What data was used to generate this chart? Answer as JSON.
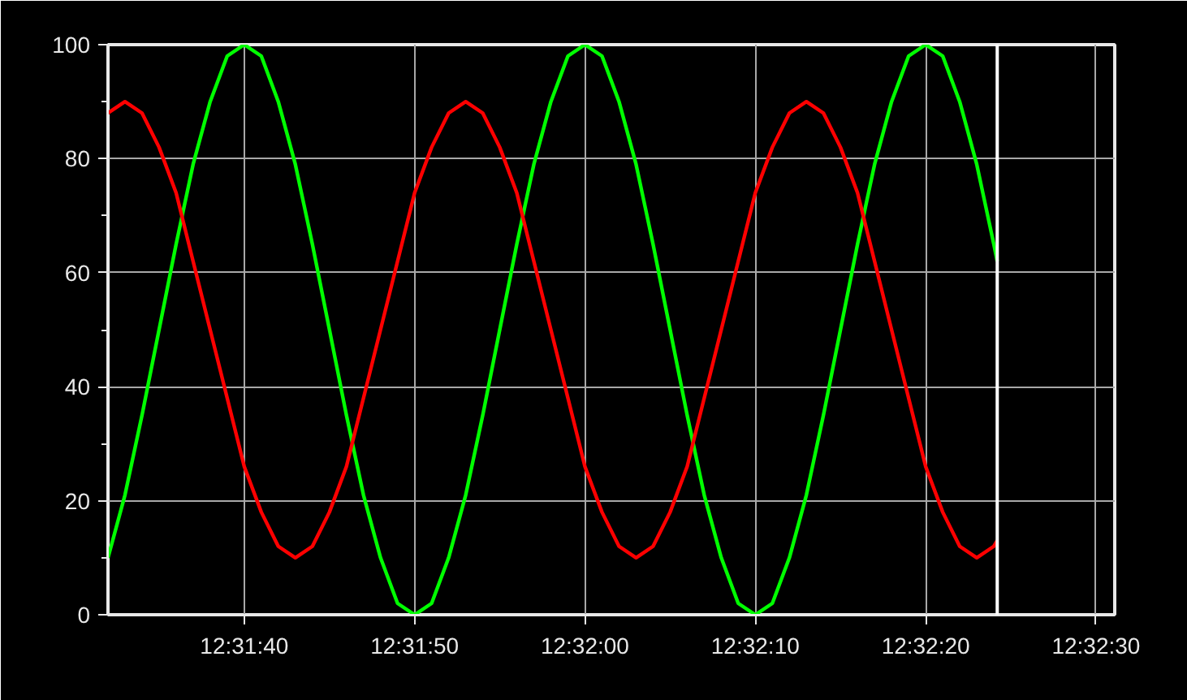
{
  "chart_data": {
    "type": "line",
    "x": [
      12.525556,
      12.525833,
      12.526111,
      12.526389,
      12.526667,
      12.526944,
      12.527222,
      12.5275,
      12.527778,
      12.528056,
      12.528333,
      12.528611,
      12.528889,
      12.529167,
      12.529444,
      12.529722,
      12.53,
      12.530278,
      12.530556,
      12.530833,
      12.531111,
      12.531389,
      12.531667,
      12.531944,
      12.532222,
      12.5325,
      12.532778,
      12.533056,
      12.533333,
      12.533611,
      12.533889,
      12.534167,
      12.534444,
      12.534722,
      12.535,
      12.535278,
      12.535556,
      12.535833,
      12.536111,
      12.536389,
      12.536667,
      12.536944,
      12.537222,
      12.5375,
      12.537778,
      12.538056,
      12.538333,
      12.538611,
      12.538889,
      12.539167,
      12.539444,
      12.539722,
      12.54,
      12.540056
    ],
    "series": [
      {
        "color": "#00ff00",
        "values": [
          10,
          21,
          35,
          50,
          65,
          79,
          90,
          98,
          100,
          98,
          90,
          79,
          65,
          50,
          35,
          21,
          10,
          2,
          0,
          2,
          10,
          21,
          35,
          50,
          65,
          79,
          90,
          98,
          100,
          98,
          90,
          79,
          65,
          50,
          35,
          21,
          10,
          2,
          0,
          2,
          10,
          21,
          35,
          50,
          65,
          79,
          90,
          98,
          100,
          98,
          90,
          79,
          65,
          62
        ]
      },
      {
        "color": "#ff0000",
        "values": [
          88,
          90,
          88,
          82,
          74,
          62,
          50,
          38,
          26,
          18,
          12,
          10,
          12,
          18,
          26,
          38,
          50,
          62,
          74,
          82,
          88,
          90,
          88,
          82,
          74,
          62,
          50,
          38,
          26,
          18,
          12,
          10,
          12,
          18,
          26,
          38,
          50,
          62,
          74,
          82,
          88,
          90,
          88,
          82,
          74,
          62,
          50,
          38,
          26,
          18,
          12,
          10,
          12,
          13
        ]
      }
    ],
    "xlim": [
      12.525556,
      12.541972
    ],
    "xticks": [
      {
        "value": 12.527778,
        "label": "12:31:40"
      },
      {
        "value": 12.530556,
        "label": "12:31:50"
      },
      {
        "value": 12.533333,
        "label": "12:32:00"
      },
      {
        "value": 12.536111,
        "label": "12:32:10"
      },
      {
        "value": 12.538889,
        "label": "12:32:20"
      },
      {
        "value": 12.541667,
        "label": "12:32:30"
      }
    ],
    "ylim": [
      0,
      100
    ],
    "yticks": [
      0,
      {
        "value": 10,
        "label": null
      },
      20,
      {
        "value": 30,
        "label": null
      },
      40,
      {
        "value": 50,
        "label": null
      },
      60,
      {
        "value": 70,
        "label": null
      },
      80,
      {
        "value": 90,
        "label": null
      },
      100
    ],
    "ref_lines": [
      {
        "axis": "x",
        "value": 12.540056,
        "label": null,
        "color": "#ffffff"
      }
    ],
    "grid": true,
    "marker": "none",
    "line_style": "solid"
  }
}
